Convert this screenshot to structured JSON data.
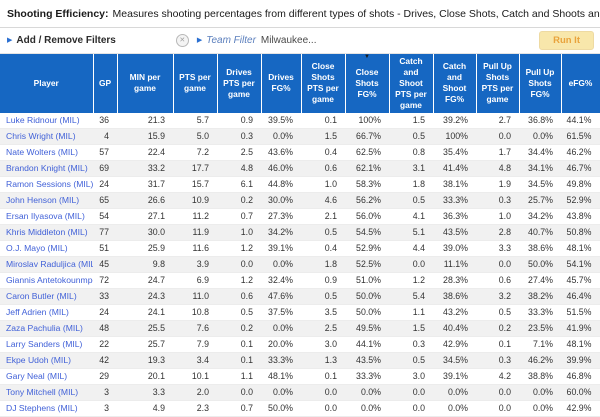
{
  "title": {
    "label": "Shooting Efficiency:",
    "description": "Measures shooting percentages from different types of shots - Drives, Close Shots, Catch and Shoots and Pull Up Shots."
  },
  "toolbar": {
    "add_remove_filters": "Add / Remove Filters",
    "team_filter_label": "Team Filter",
    "team_filter_value": "Milwaukee...",
    "run_button": "Run It"
  },
  "colors": {
    "header_blue": "#1667c2",
    "link_blue": "#4161d8",
    "run_button_bg": "#f8e7ab",
    "run_button_text": "#e9a33c"
  },
  "table": {
    "columns": [
      "Player",
      "GP",
      "MIN per game",
      "PTS per game",
      "Drives PTS per game",
      "Drives FG%",
      "Close Shots PTS per game",
      "Close Shots FG%",
      "Catch and Shoot PTS per game",
      "Catch and Shoot FG%",
      "Pull Up Shots PTS per game",
      "Pull Up Shots FG%",
      "eFG%"
    ],
    "sort_column_index": 7,
    "sort_direction": "desc",
    "rows": [
      [
        "Luke Ridnour (MIL)",
        "36",
        "21.3",
        "5.7",
        "0.9",
        "39.5%",
        "0.1",
        "100%",
        "1.5",
        "39.2%",
        "2.7",
        "36.8%",
        "44.1%"
      ],
      [
        "Chris Wright (MIL)",
        "4",
        "15.9",
        "5.0",
        "0.3",
        "0.0%",
        "1.5",
        "66.7%",
        "0.5",
        "100%",
        "0.0",
        "0.0%",
        "61.5%"
      ],
      [
        "Nate Wolters (MIL)",
        "57",
        "22.4",
        "7.2",
        "2.5",
        "43.6%",
        "0.4",
        "62.5%",
        "0.8",
        "35.4%",
        "1.7",
        "34.4%",
        "46.2%"
      ],
      [
        "Brandon Knight (MIL)",
        "69",
        "33.2",
        "17.7",
        "4.8",
        "46.0%",
        "0.6",
        "62.1%",
        "3.1",
        "41.4%",
        "4.8",
        "34.1%",
        "46.7%"
      ],
      [
        "Ramon Sessions (MIL)",
        "24",
        "31.7",
        "15.7",
        "6.1",
        "44.8%",
        "1.0",
        "58.3%",
        "1.8",
        "38.1%",
        "1.9",
        "34.5%",
        "49.8%"
      ],
      [
        "John Henson (MIL)",
        "65",
        "26.6",
        "10.9",
        "0.2",
        "30.0%",
        "4.6",
        "56.2%",
        "0.5",
        "33.3%",
        "0.3",
        "25.7%",
        "52.9%"
      ],
      [
        "Ersan Ilyasova (MIL)",
        "54",
        "27.1",
        "11.2",
        "0.7",
        "27.3%",
        "2.1",
        "56.0%",
        "4.1",
        "36.3%",
        "1.0",
        "34.2%",
        "43.8%"
      ],
      [
        "Khris Middleton (MIL)",
        "77",
        "30.0",
        "11.9",
        "1.0",
        "34.2%",
        "0.5",
        "54.5%",
        "5.1",
        "43.5%",
        "2.8",
        "40.7%",
        "50.8%"
      ],
      [
        "O.J. Mayo (MIL)",
        "51",
        "25.9",
        "11.6",
        "1.2",
        "39.1%",
        "0.4",
        "52.9%",
        "4.4",
        "39.0%",
        "3.3",
        "38.6%",
        "48.1%"
      ],
      [
        "Miroslav Raduljica (MIL)",
        "45",
        "9.8",
        "3.9",
        "0.0",
        "0.0%",
        "1.8",
        "52.5%",
        "0.0",
        "11.1%",
        "0.0",
        "50.0%",
        "54.1%"
      ],
      [
        "Giannis Antetokounmpo (MIL)",
        "72",
        "24.7",
        "6.9",
        "1.2",
        "32.4%",
        "0.9",
        "51.0%",
        "1.2",
        "28.3%",
        "0.6",
        "27.4%",
        "45.7%"
      ],
      [
        "Caron Butler (MIL)",
        "33",
        "24.3",
        "11.0",
        "0.6",
        "47.6%",
        "0.5",
        "50.0%",
        "5.4",
        "38.6%",
        "3.2",
        "38.2%",
        "46.4%"
      ],
      [
        "Jeff Adrien (MIL)",
        "24",
        "24.1",
        "10.8",
        "0.5",
        "37.5%",
        "3.5",
        "50.0%",
        "1.1",
        "43.2%",
        "0.5",
        "33.3%",
        "51.5%"
      ],
      [
        "Zaza Pachulia (MIL)",
        "48",
        "25.5",
        "7.6",
        "0.2",
        "0.0%",
        "2.5",
        "49.5%",
        "1.5",
        "40.4%",
        "0.2",
        "23.5%",
        "41.9%"
      ],
      [
        "Larry Sanders (MIL)",
        "22",
        "25.7",
        "7.9",
        "0.1",
        "20.0%",
        "3.0",
        "44.1%",
        "0.3",
        "42.9%",
        "0.1",
        "7.1%",
        "48.1%"
      ],
      [
        "Ekpe Udoh (MIL)",
        "42",
        "19.3",
        "3.4",
        "0.1",
        "33.3%",
        "1.3",
        "43.5%",
        "0.5",
        "34.5%",
        "0.3",
        "46.2%",
        "39.9%"
      ],
      [
        "Gary Neal (MIL)",
        "29",
        "20.1",
        "10.1",
        "1.1",
        "48.1%",
        "0.1",
        "33.3%",
        "3.0",
        "39.1%",
        "4.2",
        "38.8%",
        "46.8%"
      ],
      [
        "Tony Mitchell (MIL)",
        "3",
        "3.3",
        "2.0",
        "0.0",
        "0.0%",
        "0.0",
        "0.0%",
        "0.0",
        "0.0%",
        "0.0",
        "0.0%",
        "60.0%"
      ],
      [
        "DJ Stephens (MIL)",
        "3",
        "4.9",
        "2.3",
        "0.7",
        "50.0%",
        "0.0",
        "0.0%",
        "0.0",
        "0.0%",
        "0.0",
        "0.0%",
        "42.9%"
      ]
    ]
  }
}
